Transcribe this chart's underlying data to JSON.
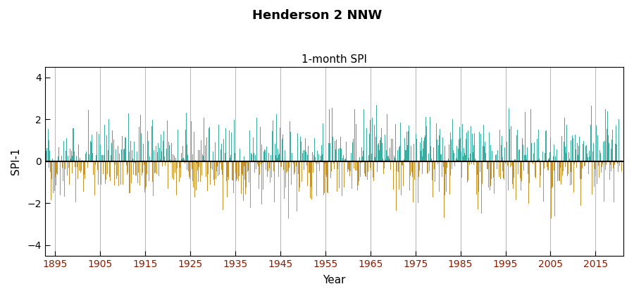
{
  "title": "Henderson 2 NNW",
  "subtitle": "1-month SPI",
  "xlabel": "Year",
  "ylabel": "SPI-1",
  "ylim": [
    -4.5,
    4.5
  ],
  "yticks": [
    -4,
    -2,
    0,
    2,
    4
  ],
  "start_year": 1893,
  "end_year": 2020,
  "color_positive": "#3aada0",
  "color_negative": "#c8922a",
  "grid_color": "#bbbbbb",
  "zero_line_color": "#000000",
  "background_color": "#ffffff",
  "title_fontsize": 13,
  "subtitle_fontsize": 11,
  "axis_label_fontsize": 11,
  "tick_fontsize": 10,
  "xtick_color": "#8B1A00",
  "ytick_color": "#000000",
  "x_tick_years": [
    1895,
    1905,
    1915,
    1925,
    1935,
    1945,
    1955,
    1965,
    1975,
    1985,
    1995,
    2005,
    2015
  ],
  "grid_years": [
    1895,
    1905,
    1915,
    1925,
    1935,
    1945,
    1955,
    1965,
    1975,
    1985,
    1995,
    2005,
    2015
  ]
}
